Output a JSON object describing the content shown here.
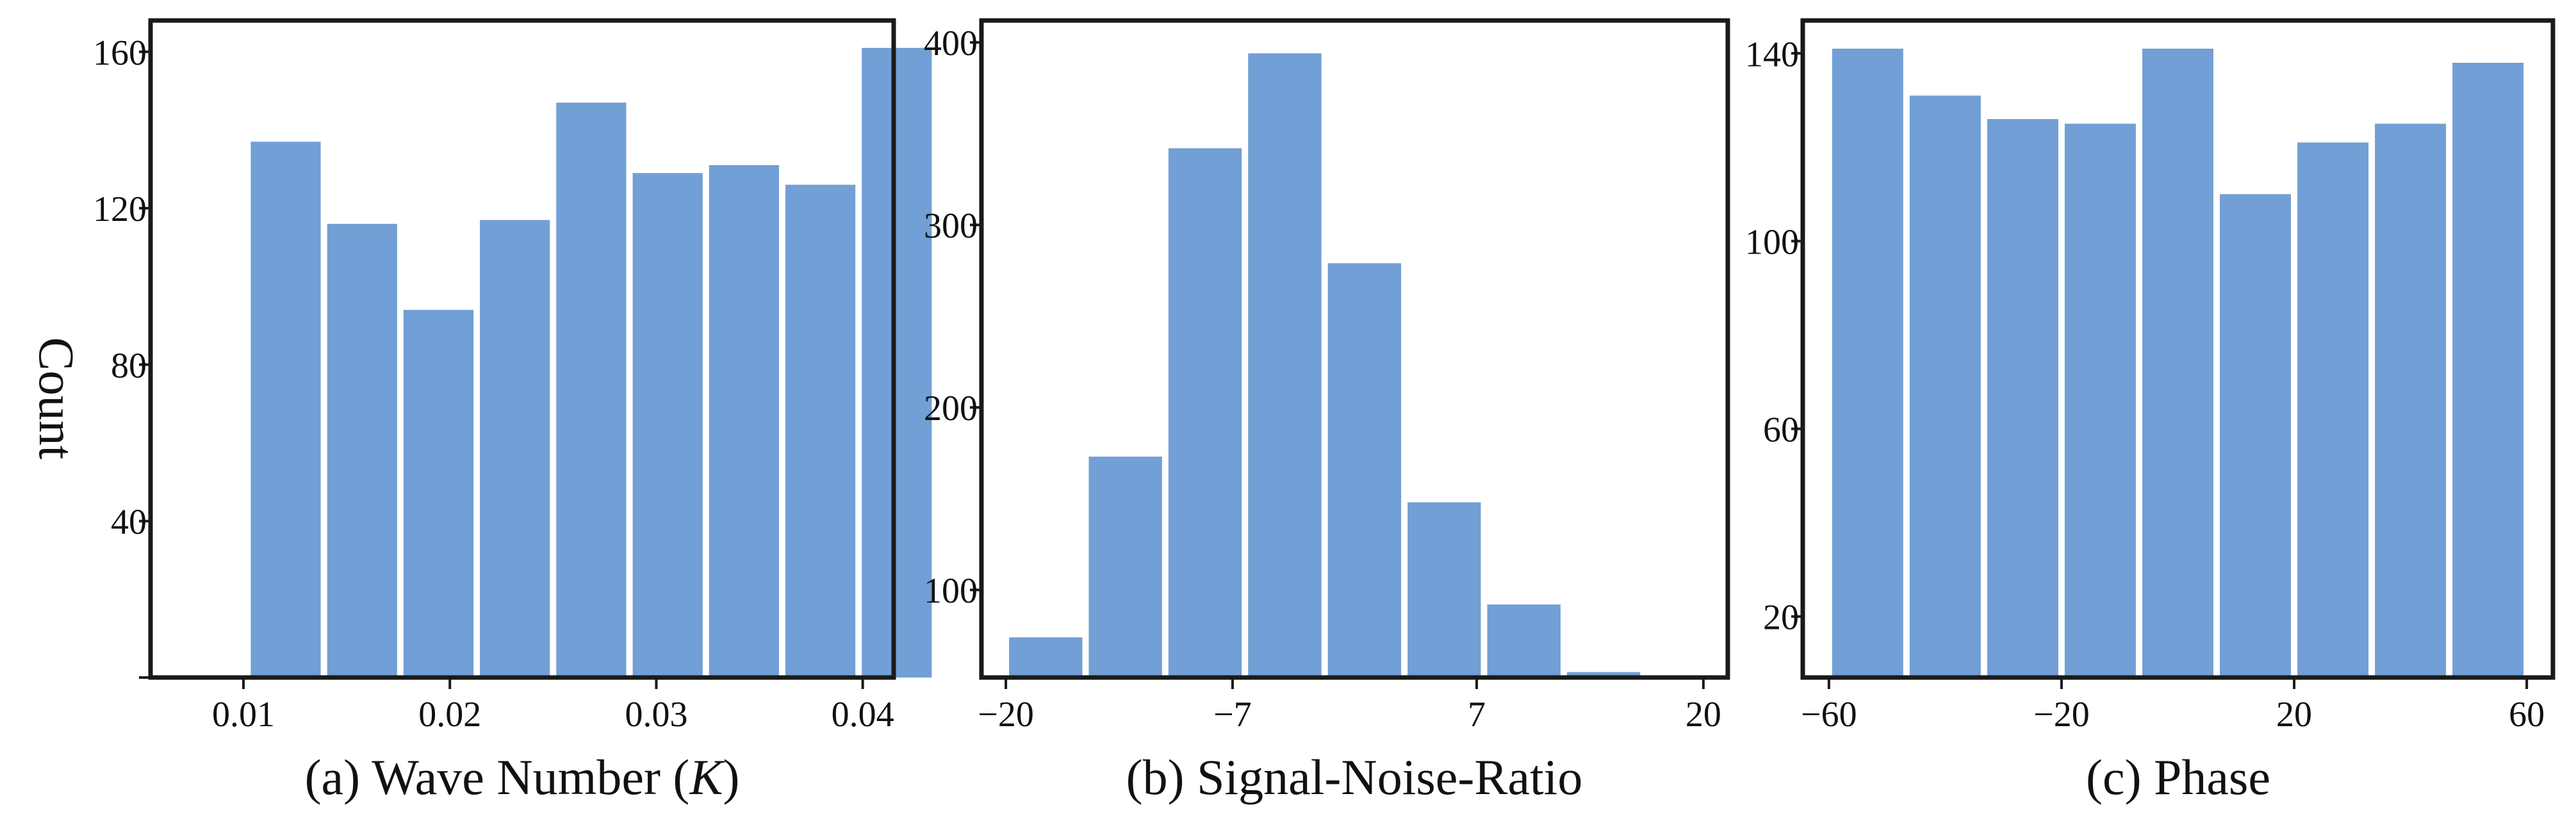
{
  "colors": {
    "bar": "#729fd5",
    "axis": "#1a1a1a",
    "background": "#ffffff"
  },
  "chart_data": [
    {
      "type": "bar",
      "title": "(a) Wave Number (K)",
      "caption_parts": [
        "(a) Wave Number (",
        "K",
        ")"
      ],
      "xlabel": "Wave Number (K)",
      "ylabel": "Count",
      "xlim": [
        0.0055,
        0.0415
      ],
      "ylim": [
        0,
        168
      ],
      "bin_edges": [
        0.0102,
        0.0139,
        0.0176,
        0.0213,
        0.025,
        0.0287,
        0.0324,
        0.0361,
        0.0398
      ],
      "bin_width": 0.0037,
      "values": [
        137,
        116,
        94,
        117,
        147,
        129,
        131,
        126,
        161
      ],
      "xticks": [
        0.01,
        0.02,
        0.03,
        0.04
      ],
      "xtick_labels": [
        "0.01",
        "0.02",
        "0.03",
        "0.04"
      ],
      "yticks": [
        0,
        40,
        80,
        120,
        160
      ],
      "ytick_labels": [
        "",
        "40",
        "80",
        "120",
        "160"
      ]
    },
    {
      "type": "bar",
      "title": "(b) Signal-Noise-Ratio",
      "caption_parts": [
        "(b) Signal-Noise-Ratio"
      ],
      "xlabel": "Signal-Noise-Ratio",
      "ylabel": "",
      "xlim": [
        -21.4,
        21.4
      ],
      "ylim": [
        52,
        412
      ],
      "bin_edges": [
        -20,
        -15.43,
        -10.86,
        -6.29,
        -1.72,
        2.85,
        7.42,
        11.99,
        16.56
      ],
      "bin_width": 4.57,
      "values": [
        74,
        173,
        342,
        394,
        279,
        148,
        92,
        55,
        52
      ],
      "xticks": [
        -20,
        -7,
        7,
        20
      ],
      "xtick_labels": [
        "−20",
        "−7",
        "7",
        "20"
      ],
      "yticks": [
        100,
        200,
        300,
        400
      ],
      "ytick_labels": [
        "100",
        "200",
        "300",
        "400"
      ]
    },
    {
      "type": "bar",
      "title": "(c) Phase",
      "caption_parts": [
        "(c) Phase"
      ],
      "xlabel": "Phase",
      "ylabel": "",
      "xlim": [
        -64.5,
        64.5
      ],
      "ylim": [
        7,
        147
      ],
      "bin_edges": [
        -60,
        -46.67,
        -33.33,
        -20,
        -6.67,
        6.67,
        20,
        33.33,
        46.67
      ],
      "bin_width": 13.33,
      "values": [
        141,
        131,
        126,
        125,
        141,
        110,
        121,
        125,
        138
      ],
      "xticks": [
        -60,
        -20,
        20,
        60
      ],
      "xtick_labels": [
        "−60",
        "−20",
        "20",
        "60"
      ],
      "yticks": [
        20,
        60,
        100,
        140
      ],
      "ytick_labels": [
        "20",
        "60",
        "100",
        "140"
      ]
    }
  ]
}
